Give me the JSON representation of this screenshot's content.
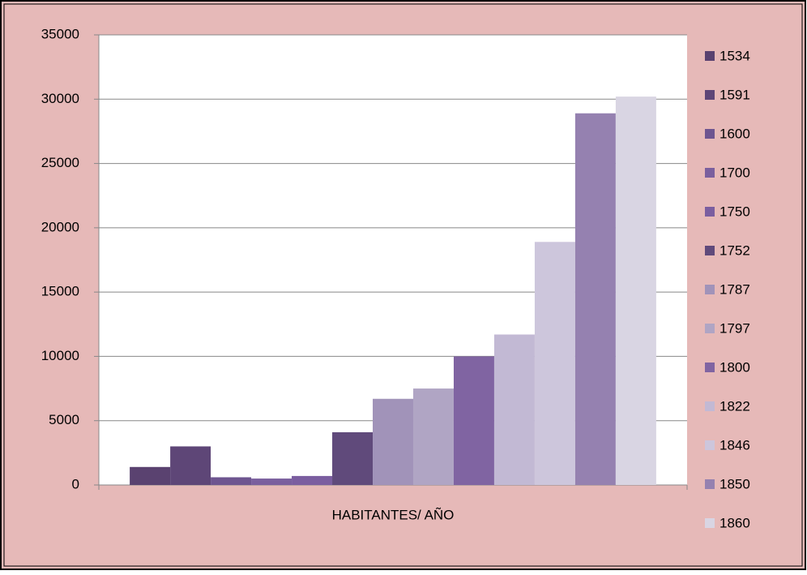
{
  "chart_data": {
    "type": "bar",
    "categories": [
      "HABITANTES/ AÑO"
    ],
    "series": [
      {
        "name": "1534",
        "color": "#5a4270",
        "values": [
          1400
        ]
      },
      {
        "name": "1591",
        "color": "#5e4677",
        "values": [
          3000
        ]
      },
      {
        "name": "1600",
        "color": "#6e5590",
        "values": [
          600
        ]
      },
      {
        "name": "1700",
        "color": "#7a5f9e",
        "values": [
          500
        ]
      },
      {
        "name": "1750",
        "color": "#7b5ea0",
        "values": [
          700
        ]
      },
      {
        "name": "1752",
        "color": "#604a7b",
        "values": [
          4100
        ]
      },
      {
        "name": "1787",
        "color": "#a193b9",
        "values": [
          6700
        ]
      },
      {
        "name": "1797",
        "color": "#b0a5c4",
        "values": [
          7500
        ]
      },
      {
        "name": "1800",
        "color": "#8064a2",
        "values": [
          10000
        ]
      },
      {
        "name": "1822",
        "color": "#c2b9d4",
        "values": [
          11700
        ]
      },
      {
        "name": "1846",
        "color": "#cdc6dc",
        "values": [
          18900
        ]
      },
      {
        "name": "1850",
        "color": "#9581b0",
        "values": [
          28900
        ]
      },
      {
        "name": "1860",
        "color": "#d9d5e3",
        "values": [
          30200
        ]
      }
    ],
    "ylim": [
      0,
      35000
    ],
    "yticks": [
      0,
      5000,
      10000,
      15000,
      20000,
      25000,
      30000,
      35000
    ],
    "grid": true,
    "legend": "right"
  }
}
